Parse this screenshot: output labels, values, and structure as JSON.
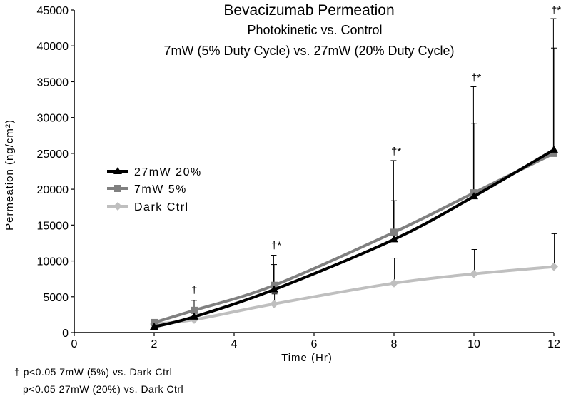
{
  "chart_data": {
    "type": "line",
    "title": "Bevacizumab Permeation",
    "subtitle_lines": [
      "Photokinetic vs. Control",
      "7mW (5% Duty Cycle) vs. 27mW (20% Duty Cycle)"
    ],
    "xlabel": "Time (Hr)",
    "ylabel": "Permeation (ng/cm²)",
    "xlim": [
      0,
      12
    ],
    "ylim": [
      0,
      45000
    ],
    "x_ticks": [
      0,
      2,
      4,
      6,
      8,
      10,
      12
    ],
    "y_ticks": [
      0,
      5000,
      10000,
      15000,
      20000,
      25000,
      30000,
      35000,
      40000,
      45000
    ],
    "x_ticks_text": [
      "0",
      "2",
      "4",
      "6",
      "8",
      "10",
      "12"
    ],
    "y_ticks_text": [
      "0",
      "5000",
      "10000",
      "15000",
      "20000",
      "25000",
      "30000",
      "35000",
      "40000",
      "45000"
    ],
    "x": [
      2,
      3,
      5,
      8,
      10,
      12
    ],
    "series": [
      {
        "name": "27mW 20%",
        "label": "27mW 20%",
        "color": "#000000",
        "marker": "triangle",
        "values": [
          800,
          2200,
          6000,
          13000,
          19000,
          25500
        ],
        "err_upper": [
          1500,
          3500,
          10800,
          24000,
          34300,
          43800
        ]
      },
      {
        "name": "7mW 5%",
        "label": "7mW 5%",
        "color": "#808080",
        "marker": "square",
        "values": [
          1400,
          3100,
          6600,
          14000,
          19500,
          25000
        ],
        "err_upper": [
          1500,
          4500,
          9500,
          18400,
          29200,
          39700
        ]
      },
      {
        "name": "Dark Ctrl",
        "label": "Dark Ctrl",
        "color": "#bfbfbf",
        "marker": "diamond",
        "values": [
          1200,
          1800,
          4000,
          6900,
          8200,
          9200
        ],
        "err_upper": [
          1500,
          2400,
          5400,
          10400,
          11600,
          13800
        ]
      }
    ],
    "significance": [
      {
        "x": 3,
        "text": "†",
        "y_value": 5500
      },
      {
        "x": 5,
        "text": "†*",
        "y_value": 11700
      },
      {
        "x": 8,
        "text": "†*",
        "y_value": 24800
      },
      {
        "x": 10,
        "text": "†*",
        "y_value": 35100
      },
      {
        "x": 12,
        "text": "†*",
        "y_value": 44500
      }
    ],
    "legend_position": "left-middle",
    "grid": false
  },
  "footnotes": {
    "fn1": "† p<0.05 7mW (5%) vs. Dark Ctrl",
    "fn2": "p<0.05 27mW (20%) vs. Dark Ctrl"
  }
}
